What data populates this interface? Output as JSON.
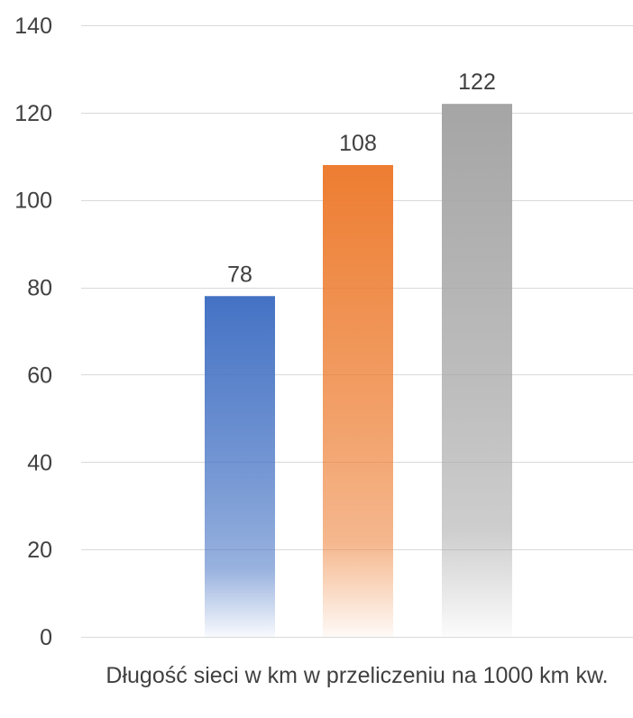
{
  "chart_data": {
    "type": "bar",
    "categories": [
      "Długość sieci w km w przeliczeniu na 1000 km kw."
    ],
    "series": [
      {
        "values": [
          78
        ],
        "color": "#4472c4"
      },
      {
        "values": [
          108
        ],
        "color": "#ed7d31"
      },
      {
        "values": [
          122
        ],
        "color": "#a5a5a5"
      }
    ],
    "ylim": [
      0,
      140
    ],
    "yticks": [
      0,
      20,
      40,
      60,
      80,
      100,
      120,
      140
    ],
    "grid": true,
    "data_labels": true,
    "title": "",
    "xlabel": "",
    "ylabel": ""
  }
}
